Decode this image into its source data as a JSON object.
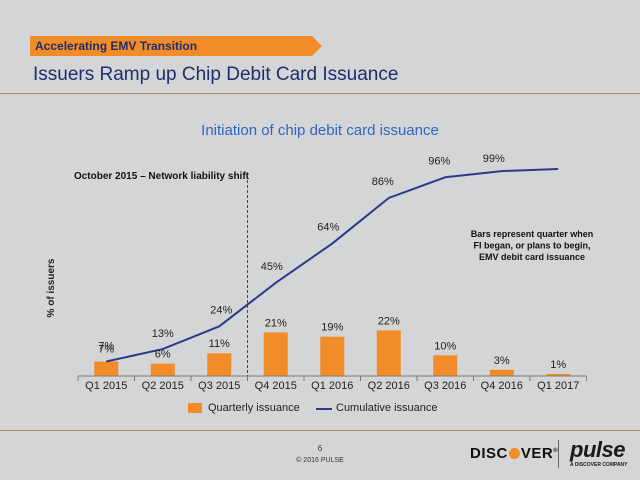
{
  "header": {
    "section_tag": "Accelerating EMV Transition",
    "title": "Issuers Ramp up Chip Debit Card Issuance"
  },
  "chart_data": {
    "type": "bar+line",
    "title": "Initiation of chip debit card issuance",
    "ylabel": "% of issuers",
    "xlabel": "",
    "ylim": [
      0,
      100
    ],
    "categories": [
      "Q1 2015",
      "Q2 2015",
      "Q3 2015",
      "Q4 2015",
      "Q1 2016",
      "Q2 2016",
      "Q3 2016",
      "Q4 2016",
      "Q1 2017"
    ],
    "series": [
      {
        "name": "Quarterly issuance",
        "type": "bar",
        "color": "#f28c28",
        "values": [
          7,
          6,
          11,
          21,
          19,
          22,
          10,
          3,
          1
        ]
      },
      {
        "name": "Cumulative issuance",
        "type": "line",
        "color": "#2b3a8c",
        "values": [
          7,
          13,
          24,
          45,
          64,
          86,
          96,
          99,
          100
        ]
      }
    ],
    "line_labels": [
      "7%",
      "13%",
      "24%",
      "45%",
      "64%",
      "86%",
      "96%",
      "99%",
      ""
    ],
    "bar_labels": [
      "7%",
      "6%",
      "11%",
      "21%",
      "19%",
      "22%",
      "10%",
      "3%",
      "1%"
    ],
    "annotations": {
      "shift_label": "October 2015 – Network liability shift",
      "shift_after_category": "Q3 2015",
      "note_lines": [
        "Bars represent quarter when",
        "FI began, or plans to begin,",
        "EMV debit card issuance"
      ]
    }
  },
  "legend": {
    "bar_label": "Quarterly issuance",
    "line_label": "Cumulative issuance"
  },
  "footer": {
    "page_number": "6",
    "copyright": "© 2016 PULSE",
    "discover_logo": "DISCOVER",
    "pulse_logo": "pulse",
    "pulse_tagline": "A DISCOVER COMPANY"
  }
}
